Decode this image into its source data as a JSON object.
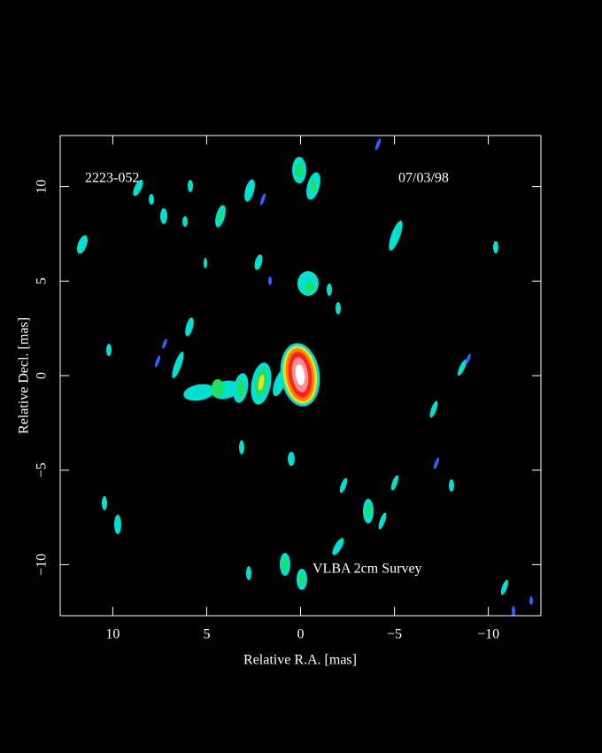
{
  "chart_data": {
    "type": "image",
    "title": "2223-052",
    "date": "07/03/98",
    "annotation": "VLBA 2cm Survey",
    "x_label": "Relative R.A. [mas]",
    "y_label": "Relative Decl. [mas]",
    "xlim": [
      12.8,
      -12.8
    ],
    "ylim": [
      -12.7,
      12.7
    ],
    "xticks": [
      10,
      5,
      0,
      {
        "value": -5,
        "label": "−5"
      },
      {
        "value": -10,
        "label": "−10"
      }
    ],
    "yticks": [
      {
        "value": -10,
        "label": "−10"
      },
      {
        "value": -5,
        "label": "−5"
      },
      0,
      5,
      10
    ]
  }
}
